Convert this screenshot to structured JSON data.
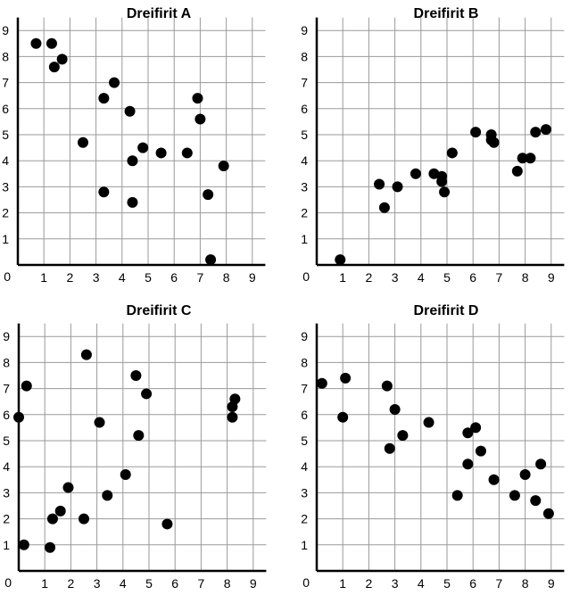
{
  "chart_data": [
    {
      "type": "scatter",
      "title": "Dreifirit A",
      "xlim": [
        0,
        9.5
      ],
      "ylim": [
        0,
        9.5
      ],
      "grid": true,
      "x_ticks": [
        "1",
        "2",
        "3",
        "4",
        "5",
        "6",
        "7",
        "8",
        "9"
      ],
      "y_ticks": [
        "1",
        "2",
        "3",
        "4",
        "5",
        "6",
        "7",
        "8",
        "9"
      ],
      "origin_label": "0",
      "points": [
        [
          0.7,
          8.5
        ],
        [
          1.3,
          8.5
        ],
        [
          1.4,
          7.6
        ],
        [
          1.7,
          7.9
        ],
        [
          2.5,
          4.7
        ],
        [
          3.3,
          6.4
        ],
        [
          3.3,
          2.8
        ],
        [
          3.7,
          7.0
        ],
        [
          4.3,
          5.9
        ],
        [
          4.4,
          4.0
        ],
        [
          4.4,
          2.4
        ],
        [
          4.8,
          4.5
        ],
        [
          5.5,
          4.3
        ],
        [
          6.5,
          4.3
        ],
        [
          6.9,
          6.4
        ],
        [
          7.0,
          5.6
        ],
        [
          7.3,
          2.7
        ],
        [
          7.4,
          0.2
        ],
        [
          7.9,
          3.8
        ]
      ]
    },
    {
      "type": "scatter",
      "title": "Dreifirit B",
      "xlim": [
        0,
        9.5
      ],
      "ylim": [
        0,
        9.5
      ],
      "grid": true,
      "x_ticks": [
        "1",
        "2",
        "3",
        "4",
        "5",
        "6",
        "7",
        "8",
        "9"
      ],
      "y_ticks": [
        "1",
        "2",
        "3",
        "4",
        "5",
        "6",
        "7",
        "8",
        "9"
      ],
      "origin_label": "0",
      "points": [
        [
          0.9,
          0.2
        ],
        [
          2.4,
          3.1
        ],
        [
          2.6,
          2.2
        ],
        [
          3.1,
          3.0
        ],
        [
          3.8,
          3.5
        ],
        [
          4.5,
          3.5
        ],
        [
          4.8,
          3.4
        ],
        [
          4.8,
          3.2
        ],
        [
          4.9,
          2.8
        ],
        [
          5.2,
          4.3
        ],
        [
          6.1,
          5.1
        ],
        [
          6.7,
          5.0
        ],
        [
          6.7,
          4.8
        ],
        [
          6.8,
          4.7
        ],
        [
          7.7,
          3.6
        ],
        [
          7.9,
          4.1
        ],
        [
          8.2,
          4.1
        ],
        [
          8.4,
          5.1
        ],
        [
          8.8,
          5.2
        ]
      ]
    },
    {
      "type": "scatter",
      "title": "Dreifirit C",
      "xlim": [
        0,
        9.5
      ],
      "ylim": [
        0,
        9.5
      ],
      "grid": true,
      "x_ticks": [
        "1",
        "2",
        "3",
        "4",
        "5",
        "6",
        "7",
        "8",
        "9"
      ],
      "y_ticks": [
        "1",
        "2",
        "3",
        "4",
        "5",
        "6",
        "7",
        "8",
        "9"
      ],
      "origin_label": "0",
      "points": [
        [
          0.0,
          5.9
        ],
        [
          0.2,
          1.0
        ],
        [
          0.3,
          7.1
        ],
        [
          1.2,
          0.9
        ],
        [
          1.3,
          2.0
        ],
        [
          1.6,
          2.3
        ],
        [
          1.9,
          3.2
        ],
        [
          2.5,
          2.0
        ],
        [
          2.6,
          8.3
        ],
        [
          3.1,
          5.7
        ],
        [
          3.4,
          2.9
        ],
        [
          4.1,
          3.7
        ],
        [
          4.5,
          7.5
        ],
        [
          4.6,
          5.2
        ],
        [
          4.9,
          6.8
        ],
        [
          5.7,
          1.8
        ],
        [
          8.2,
          5.9
        ],
        [
          8.2,
          6.3
        ],
        [
          8.3,
          6.6
        ]
      ]
    },
    {
      "type": "scatter",
      "title": "Dreifirit D",
      "xlim": [
        0,
        9.5
      ],
      "ylim": [
        0,
        9.5
      ],
      "grid": true,
      "x_ticks": [
        "1",
        "2",
        "3",
        "4",
        "5",
        "6",
        "7",
        "8",
        "9"
      ],
      "y_ticks": [
        "1",
        "2",
        "3",
        "4",
        "5",
        "6",
        "7",
        "8",
        "9"
      ],
      "origin_label": "0",
      "points": [
        [
          0.2,
          7.2
        ],
        [
          1.0,
          5.9
        ],
        [
          1.1,
          7.4
        ],
        [
          2.7,
          7.1
        ],
        [
          2.8,
          4.7
        ],
        [
          3.0,
          6.2
        ],
        [
          3.3,
          5.2
        ],
        [
          4.3,
          5.7
        ],
        [
          5.4,
          2.9
        ],
        [
          5.8,
          5.3
        ],
        [
          5.8,
          4.1
        ],
        [
          6.1,
          5.5
        ],
        [
          6.3,
          4.6
        ],
        [
          6.8,
          3.5
        ],
        [
          7.6,
          2.9
        ],
        [
          8.0,
          3.7
        ],
        [
          8.4,
          2.7
        ],
        [
          8.6,
          4.1
        ],
        [
          8.9,
          2.2
        ]
      ]
    }
  ]
}
